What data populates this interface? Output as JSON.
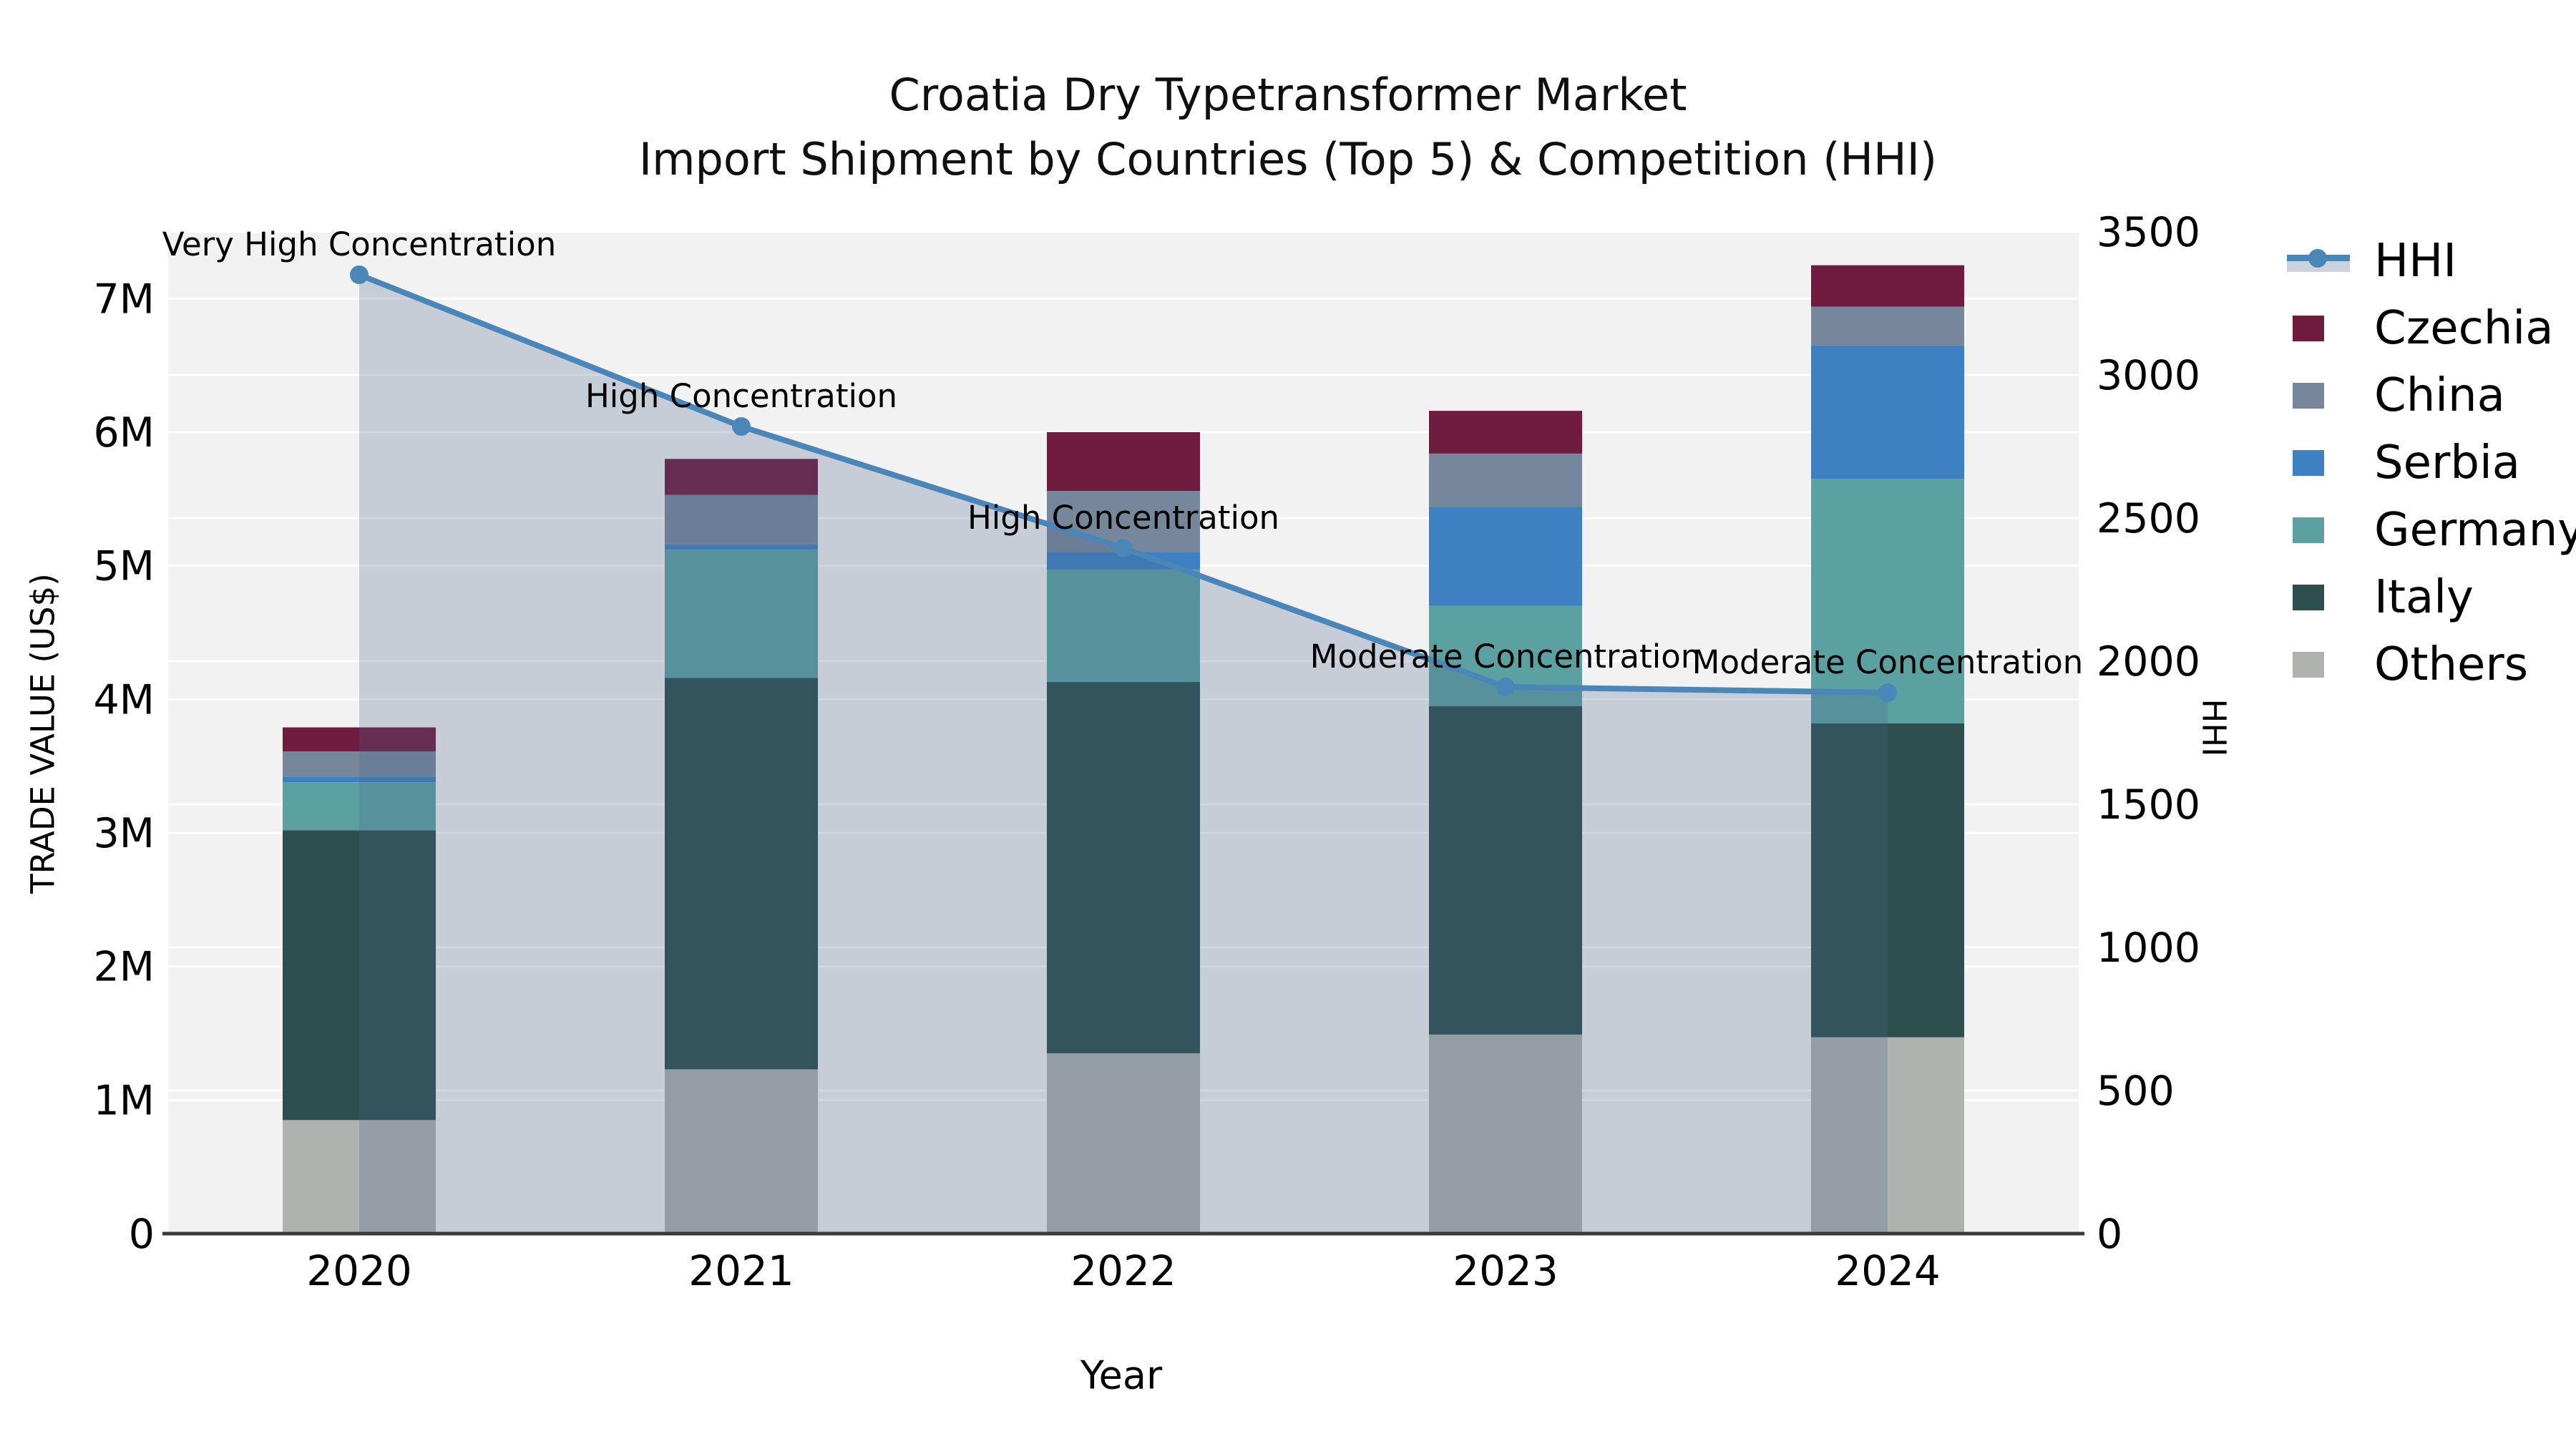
{
  "title": {
    "line1": "Croatia Dry Typetransformer Market",
    "line2": "Import Shipment by Countries (Top 5) & Competition (HHI)"
  },
  "axes": {
    "x_label": "Year",
    "y_left_label": "TRADE VALUE (US$)",
    "y_right_label": "HHI",
    "y_left_ticks": [
      "0",
      "1M",
      "2M",
      "3M",
      "4M",
      "5M",
      "6M",
      "7M"
    ],
    "y_right_ticks": [
      "0",
      "500",
      "1000",
      "1500",
      "2000",
      "2500",
      "3000",
      "3500"
    ],
    "x_ticks": [
      "2020",
      "2021",
      "2022",
      "2023",
      "2024"
    ]
  },
  "colors": {
    "plot_background": "#f2f2f2",
    "grid": "#ffffff",
    "axis_line": "#3a3a3a",
    "hhi_line": "#4a86b8",
    "hhi_fill": "rgba(72,102,140,0.26)",
    "czechia": "#701c3f",
    "china": "#76879b",
    "serbia": "#3e81c3",
    "germany": "#5ba1a2",
    "italy": "#2d4f4d",
    "others": "#b0b2b0"
  },
  "legend": [
    {
      "label": "HHI",
      "type": "line",
      "color": "#4a86b8",
      "band": "#ccd3dd"
    },
    {
      "label": "Czechia",
      "type": "swatch",
      "color": "#701c3f"
    },
    {
      "label": "China",
      "type": "swatch",
      "color": "#76879b"
    },
    {
      "label": "Serbia",
      "type": "swatch",
      "color": "#3e81c3"
    },
    {
      "label": "Germany",
      "type": "swatch",
      "color": "#5ba1a2"
    },
    {
      "label": "Italy",
      "type": "swatch",
      "color": "#2d4f4d"
    },
    {
      "label": "Others",
      "type": "swatch",
      "color": "#b0b2b0"
    }
  ],
  "chart_data": {
    "type": "bar+line",
    "title": "Croatia Dry Typetransformer Market — Import Shipment by Countries (Top 5) & Competition (HHI)",
    "categories": [
      "2020",
      "2021",
      "2022",
      "2023",
      "2024"
    ],
    "xlabel": "Year",
    "ylabel_left": "TRADE VALUE (US$)",
    "ylabel_right": "HHI",
    "ylim_left_musd": [
      0,
      7.5
    ],
    "ylim_right": [
      0,
      3500
    ],
    "grid": true,
    "legend_position": "right",
    "units": "millions of US$",
    "stacked_series": [
      {
        "name": "Others",
        "color": "#b0b2b0",
        "values": [
          0.85,
          1.23,
          1.35,
          1.49,
          1.47
        ]
      },
      {
        "name": "Italy",
        "color": "#2d4f4d",
        "values": [
          2.17,
          2.93,
          2.78,
          2.46,
          2.35
        ]
      },
      {
        "name": "Germany",
        "color": "#5ba1a2",
        "values": [
          0.36,
          0.96,
          0.84,
          0.75,
          1.83
        ]
      },
      {
        "name": "Serbia",
        "color": "#3e81c3",
        "values": [
          0.04,
          0.04,
          0.13,
          0.74,
          1.0
        ]
      },
      {
        "name": "China",
        "color": "#76879b",
        "values": [
          0.19,
          0.37,
          0.46,
          0.4,
          0.29
        ]
      },
      {
        "name": "Czechia",
        "color": "#701c3f",
        "values": [
          0.18,
          0.27,
          0.44,
          0.32,
          0.31
        ]
      }
    ],
    "bar_totals_musd": [
      3.79,
      5.8,
      6.0,
      6.16,
      7.25
    ],
    "line_series": {
      "name": "HHI",
      "color": "#4a86b8",
      "fill_color": "rgba(72,102,140,0.26)",
      "values": [
        3350,
        2820,
        2395,
        1910,
        1890
      ],
      "annotations": [
        "Very High Concentration",
        "High Concentration",
        "High Concentration",
        "Moderate Concentration",
        "Moderate Concentration"
      ]
    }
  }
}
